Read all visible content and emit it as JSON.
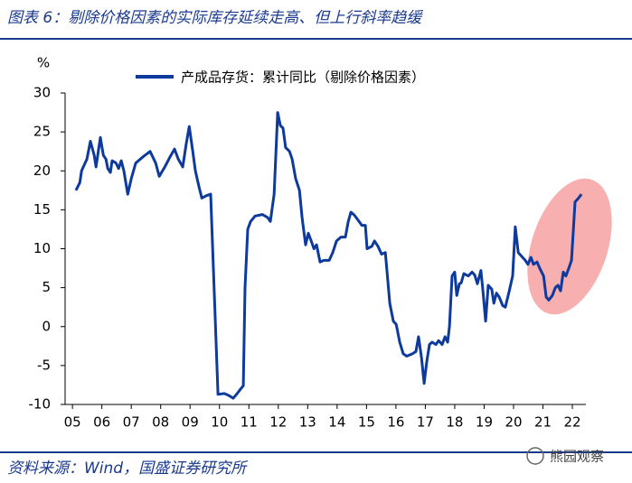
{
  "chart_data": {
    "type": "line",
    "title": "图表 6：剔除价格因素的实际库存延续走高、但上行斜率趋缓",
    "y_label": "%",
    "source": "资料来源：Wind，国盛证券研究所",
    "watermark": "熊园观察",
    "xlim": [
      2004.75,
      2022.46
    ],
    "xticks": [
      {
        "value": 2005,
        "label": "05"
      },
      {
        "value": 2006,
        "label": "06"
      },
      {
        "value": 2007,
        "label": "07"
      },
      {
        "value": 2008,
        "label": "08"
      },
      {
        "value": 2009,
        "label": "09"
      },
      {
        "value": 2010,
        "label": "10"
      },
      {
        "value": 2011,
        "label": "11"
      },
      {
        "value": 2012,
        "label": "12"
      },
      {
        "value": 2013,
        "label": "13"
      },
      {
        "value": 2014,
        "label": "14"
      },
      {
        "value": 2015,
        "label": "15"
      },
      {
        "value": 2016,
        "label": "16"
      },
      {
        "value": 2017,
        "label": "17"
      },
      {
        "value": 2018,
        "label": "18"
      },
      {
        "value": 2019,
        "label": "19"
      },
      {
        "value": 2020,
        "label": "20"
      },
      {
        "value": 2021,
        "label": "21"
      },
      {
        "value": 2022,
        "label": "22"
      }
    ],
    "ylim": [
      -10,
      30
    ],
    "yticks": [
      -10,
      -5,
      0,
      5,
      10,
      15,
      20,
      25,
      30
    ],
    "grid": false,
    "series": [
      {
        "name": "产成品存货：累计同比（剔除价格因素）",
        "color": "#0d3a9c",
        "x": [
          2005.12,
          2005.25,
          2005.31,
          2005.49,
          2005.61,
          2005.74,
          2005.8,
          2005.86,
          2005.95,
          2006.05,
          2006.14,
          2006.2,
          2006.29,
          2006.35,
          2006.48,
          2006.57,
          2006.66,
          2006.75,
          2006.88,
          2007.0,
          2007.15,
          2007.4,
          2007.64,
          2007.83,
          2007.95,
          2008.14,
          2008.32,
          2008.47,
          2008.6,
          2008.75,
          2008.87,
          2008.97,
          2009.09,
          2009.18,
          2009.3,
          2009.4,
          2009.55,
          2009.7,
          2009.95,
          2010.16,
          2010.29,
          2010.47,
          2010.6,
          2010.72,
          2010.81,
          2010.87,
          2010.96,
          2011.06,
          2011.21,
          2011.46,
          2011.64,
          2011.73,
          2011.86,
          2011.98,
          2012.07,
          2012.16,
          2012.25,
          2012.38,
          2012.47,
          2012.59,
          2012.72,
          2012.81,
          2012.93,
          2013.02,
          2013.12,
          2013.21,
          2013.3,
          2013.42,
          2013.55,
          2013.73,
          2013.85,
          2013.98,
          2014.13,
          2014.28,
          2014.38,
          2014.47,
          2014.59,
          2014.71,
          2014.84,
          2014.96,
          2015.02,
          2015.18,
          2015.27,
          2015.39,
          2015.51,
          2015.64,
          2015.7,
          2015.79,
          2015.91,
          2016.01,
          2016.13,
          2016.25,
          2016.37,
          2016.56,
          2016.68,
          2016.77,
          2016.87,
          2016.96,
          2017.05,
          2017.14,
          2017.23,
          2017.36,
          2017.45,
          2017.57,
          2017.67,
          2017.76,
          2017.82,
          2017.91,
          2018.0,
          2018.07,
          2018.16,
          2018.22,
          2018.31,
          2018.46,
          2018.59,
          2018.68,
          2018.77,
          2018.89,
          2018.96,
          2019.05,
          2019.14,
          2019.26,
          2019.33,
          2019.42,
          2019.51,
          2019.63,
          2019.72,
          2019.85,
          2019.97,
          2020.06,
          2020.16,
          2020.28,
          2020.4,
          2020.49,
          2020.59,
          2020.68,
          2020.8,
          2020.89,
          2021.02,
          2021.11,
          2021.2,
          2021.32,
          2021.42,
          2021.51,
          2021.6,
          2021.69,
          2021.78,
          2021.88,
          2021.97,
          2022.09,
          2022.21,
          2022.31
        ],
        "values": [
          17.5,
          18.5,
          20,
          21.5,
          23.8,
          22,
          20.5,
          22,
          24.3,
          22,
          21.5,
          20.3,
          19.8,
          21.3,
          21,
          20.3,
          21.3,
          20,
          17,
          19,
          21,
          21.8,
          22.5,
          21,
          19.3,
          20.5,
          21.8,
          22.8,
          21.5,
          20.5,
          23.5,
          25.7,
          22.5,
          20,
          18,
          16.5,
          16.8,
          17,
          -8.7,
          -8.6,
          -8.8,
          -9.2,
          -8.6,
          -8,
          -7.6,
          5,
          12.5,
          13.5,
          14.2,
          14.4,
          14,
          13.5,
          17,
          27.5,
          25.8,
          25.5,
          23,
          22.5,
          21.5,
          19,
          17.5,
          14,
          10.5,
          12,
          11,
          10,
          10.5,
          8.3,
          8.5,
          8.5,
          9.5,
          11,
          11.5,
          11.5,
          13.5,
          14.7,
          14.3,
          13.7,
          13,
          13,
          10,
          10.3,
          11,
          10.3,
          9.3,
          9.5,
          7,
          3,
          0.7,
          0.3,
          -2,
          -3.5,
          -3.8,
          -3.5,
          -3.2,
          -1.3,
          -4,
          -7.3,
          -4.5,
          -2.3,
          -2,
          -2.3,
          -1.8,
          -2.3,
          -1.3,
          -2,
          0,
          6.5,
          7,
          4,
          5.5,
          5.6,
          6.8,
          6.5,
          7,
          6.6,
          5.5,
          7.2,
          4.5,
          0.7,
          5.3,
          4.8,
          3,
          4.3,
          3.8,
          2.7,
          2.5,
          4.5,
          6.5,
          12.8,
          9.5,
          9,
          8.5,
          8,
          8.9,
          8,
          8.3,
          7.5,
          6.5,
          3.8,
          3.4,
          4,
          5,
          5.3,
          4.6,
          7,
          6.5,
          7.5,
          8.5,
          16,
          16.5,
          17
        ]
      }
    ]
  }
}
